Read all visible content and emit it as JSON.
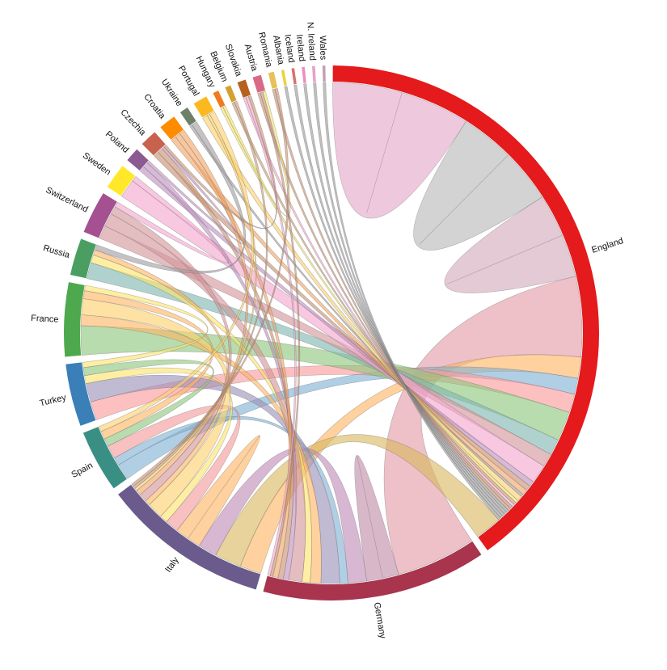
{
  "chart_data": {
    "type": "chord",
    "title": "",
    "nodes": [
      {
        "name": "England",
        "color": "#e41a1c"
      },
      {
        "name": "Germany",
        "color": "#a8344e"
      },
      {
        "name": "Italy",
        "color": "#6b5b8c"
      },
      {
        "name": "Spain",
        "color": "#3a8f85"
      },
      {
        "name": "Turkey",
        "color": "#3a7fb8"
      },
      {
        "name": "France",
        "color": "#4ea94e"
      },
      {
        "name": "Russia",
        "color": "#4a9e62"
      },
      {
        "name": "Switzerland",
        "color": "#a45091"
      },
      {
        "name": "Sweden",
        "color": "#ffe82a"
      },
      {
        "name": "Poland",
        "color": "#8c5a92"
      },
      {
        "name": "Czechia",
        "color": "#c8614d"
      },
      {
        "name": "Croatia",
        "color": "#ff8c00"
      },
      {
        "name": "Ukraine",
        "color": "#6e8068"
      },
      {
        "name": "Portugal",
        "color": "#fbb820"
      },
      {
        "name": "Hungary",
        "color": "#f07a1c"
      },
      {
        "name": "Belgium",
        "color": "#d4a030"
      },
      {
        "name": "Slovakia",
        "color": "#b4621e"
      },
      {
        "name": "Austria",
        "color": "#d86a85"
      },
      {
        "name": "Romania",
        "color": "#e6c25a"
      },
      {
        "name": "Albania",
        "color": "#e8d43a"
      },
      {
        "name": "Iceland",
        "color": "#d9706a"
      },
      {
        "name": "Ireland",
        "color": "#f08cc0"
      },
      {
        "name": "N. Ireland",
        "color": "#e8a0c8"
      },
      {
        "name": "Wales",
        "color": "#c0a0b8"
      }
    ],
    "flows": [
      {
        "source": "England",
        "target": "England",
        "value": 26,
        "color": "#e3a8c8"
      },
      {
        "source": "England",
        "target": "England",
        "value": 20,
        "color": "#b8b8b8"
      },
      {
        "source": "England",
        "target": "England",
        "value": 16,
        "color": "#d4aabb"
      },
      {
        "source": "England",
        "target": "Germany",
        "value": 30,
        "color": "#e39aa6"
      },
      {
        "source": "England",
        "target": "Italy",
        "value": 8,
        "color": "#fdb462"
      },
      {
        "source": "England",
        "target": "Spain",
        "value": 6,
        "color": "#80b1d3"
      },
      {
        "source": "England",
        "target": "Turkey",
        "value": 7,
        "color": "#fb9a99"
      },
      {
        "source": "England",
        "target": "France",
        "value": 11,
        "color": "#8cc67a"
      },
      {
        "source": "England",
        "target": "Russia",
        "value": 6,
        "color": "#7fb6b0"
      },
      {
        "source": "England",
        "target": "Switzerland",
        "value": 5,
        "color": "#d4959a"
      },
      {
        "source": "England",
        "target": "Sweden",
        "value": 7,
        "color": "#f4a6cf"
      },
      {
        "source": "England",
        "target": "Poland",
        "value": 2,
        "color": "#bf8fbf"
      },
      {
        "source": "England",
        "target": "Czechia",
        "value": 2,
        "color": "#c89070"
      },
      {
        "source": "England",
        "target": "Croatia",
        "value": 2,
        "color": "#f2a465"
      },
      {
        "source": "England",
        "target": "Ukraine",
        "value": 1,
        "color": "#a09ca0"
      },
      {
        "source": "England",
        "target": "Portugal",
        "value": 2,
        "color": "#fdd06a"
      },
      {
        "source": "England",
        "target": "Hungary",
        "value": 1,
        "color": "#f3e36a"
      },
      {
        "source": "England",
        "target": "Belgium",
        "value": 1,
        "color": "#c89a70"
      },
      {
        "source": "England",
        "target": "Slovakia",
        "value": 1,
        "color": "#f4a6cf"
      },
      {
        "source": "England",
        "target": "Austria",
        "value": 1,
        "color": "#c89070"
      },
      {
        "source": "England",
        "target": "Romania",
        "value": 1,
        "color": "#c89070"
      },
      {
        "source": "England",
        "target": "Albania",
        "value": 1,
        "color": "#999999"
      },
      {
        "source": "England",
        "target": "Iceland",
        "value": 1,
        "color": "#999999"
      },
      {
        "source": "England",
        "target": "Ireland",
        "value": 1,
        "color": "#999999"
      },
      {
        "source": "England",
        "target": "N. Ireland",
        "value": 1,
        "color": "#999999"
      },
      {
        "source": "England",
        "target": "Wales",
        "value": 1,
        "color": "#999999"
      },
      {
        "source": "England",
        "target": "Italy",
        "value": 10,
        "color": "#d9b85e"
      },
      {
        "source": "Germany",
        "target": "Germany",
        "value": 6,
        "color": "#c08aa8"
      },
      {
        "source": "Germany",
        "target": "Italy",
        "value": 7,
        "color": "#c08ab8"
      },
      {
        "source": "Germany",
        "target": "Spain",
        "value": 3,
        "color": "#80b1d3"
      },
      {
        "source": "Germany",
        "target": "Turkey",
        "value": 7,
        "color": "#9b8fb8"
      },
      {
        "source": "Germany",
        "target": "France",
        "value": 4,
        "color": "#fdb462"
      },
      {
        "source": "Germany",
        "target": "Russia",
        "value": 3,
        "color": "#fbe36a"
      },
      {
        "source": "Germany",
        "target": "Switzerland",
        "value": 5,
        "color": "#d4959a"
      },
      {
        "source": "Germany",
        "target": "Poland",
        "value": 2,
        "color": "#bf8fbf"
      },
      {
        "source": "Germany",
        "target": "Czechia",
        "value": 2,
        "color": "#c89070"
      },
      {
        "source": "Germany",
        "target": "Croatia",
        "value": 2,
        "color": "#f2a465"
      },
      {
        "source": "Germany",
        "target": "Austria",
        "value": 1,
        "color": "#c89070"
      },
      {
        "source": "Germany",
        "target": "Slovakia",
        "value": 1,
        "color": "#f4a6cf"
      },
      {
        "source": "Italy",
        "target": "Italy",
        "value": 5,
        "color": "#fdb462"
      },
      {
        "source": "Italy",
        "target": "Spain",
        "value": 5,
        "color": "#f49a9a"
      },
      {
        "source": "Italy",
        "target": "Turkey",
        "value": 3,
        "color": "#fde36a"
      },
      {
        "source": "Italy",
        "target": "France",
        "value": 6,
        "color": "#fdd06a"
      },
      {
        "source": "Italy",
        "target": "Russia",
        "value": 2,
        "color": "#fdb462"
      },
      {
        "source": "Italy",
        "target": "Switzerland",
        "value": 3,
        "color": "#d4959a"
      },
      {
        "source": "Italy",
        "target": "Croatia",
        "value": 2,
        "color": "#f2a465"
      },
      {
        "source": "Italy",
        "target": "Portugal",
        "value": 1,
        "color": "#fdd06a"
      },
      {
        "source": "Italy",
        "target": "Belgium",
        "value": 1,
        "color": "#c89a70"
      },
      {
        "source": "Italy",
        "target": "Romania",
        "value": 1,
        "color": "#c89070"
      },
      {
        "source": "Spain",
        "target": "Turkey",
        "value": 3,
        "color": "#8cc67a"
      },
      {
        "source": "Spain",
        "target": "France",
        "value": 3,
        "color": "#fdb462"
      },
      {
        "source": "Spain",
        "target": "Portugal",
        "value": 2,
        "color": "#fdd06a"
      },
      {
        "source": "Turkey",
        "target": "France",
        "value": 2,
        "color": "#fde36a"
      },
      {
        "source": "Russia",
        "target": "Ukraine",
        "value": 2,
        "color": "#a09ca0"
      },
      {
        "source": "Sweden",
        "target": "Switzerland",
        "value": 2,
        "color": "#f4a6cf"
      },
      {
        "source": "Poland",
        "target": "Czechia",
        "value": 1,
        "color": "#bf8fbf"
      },
      {
        "source": "Czechia",
        "target": "Slovakia",
        "value": 1,
        "color": "#c89070"
      },
      {
        "source": "Hungary",
        "target": "Austria",
        "value": 1,
        "color": "#f3e36a"
      }
    ]
  }
}
